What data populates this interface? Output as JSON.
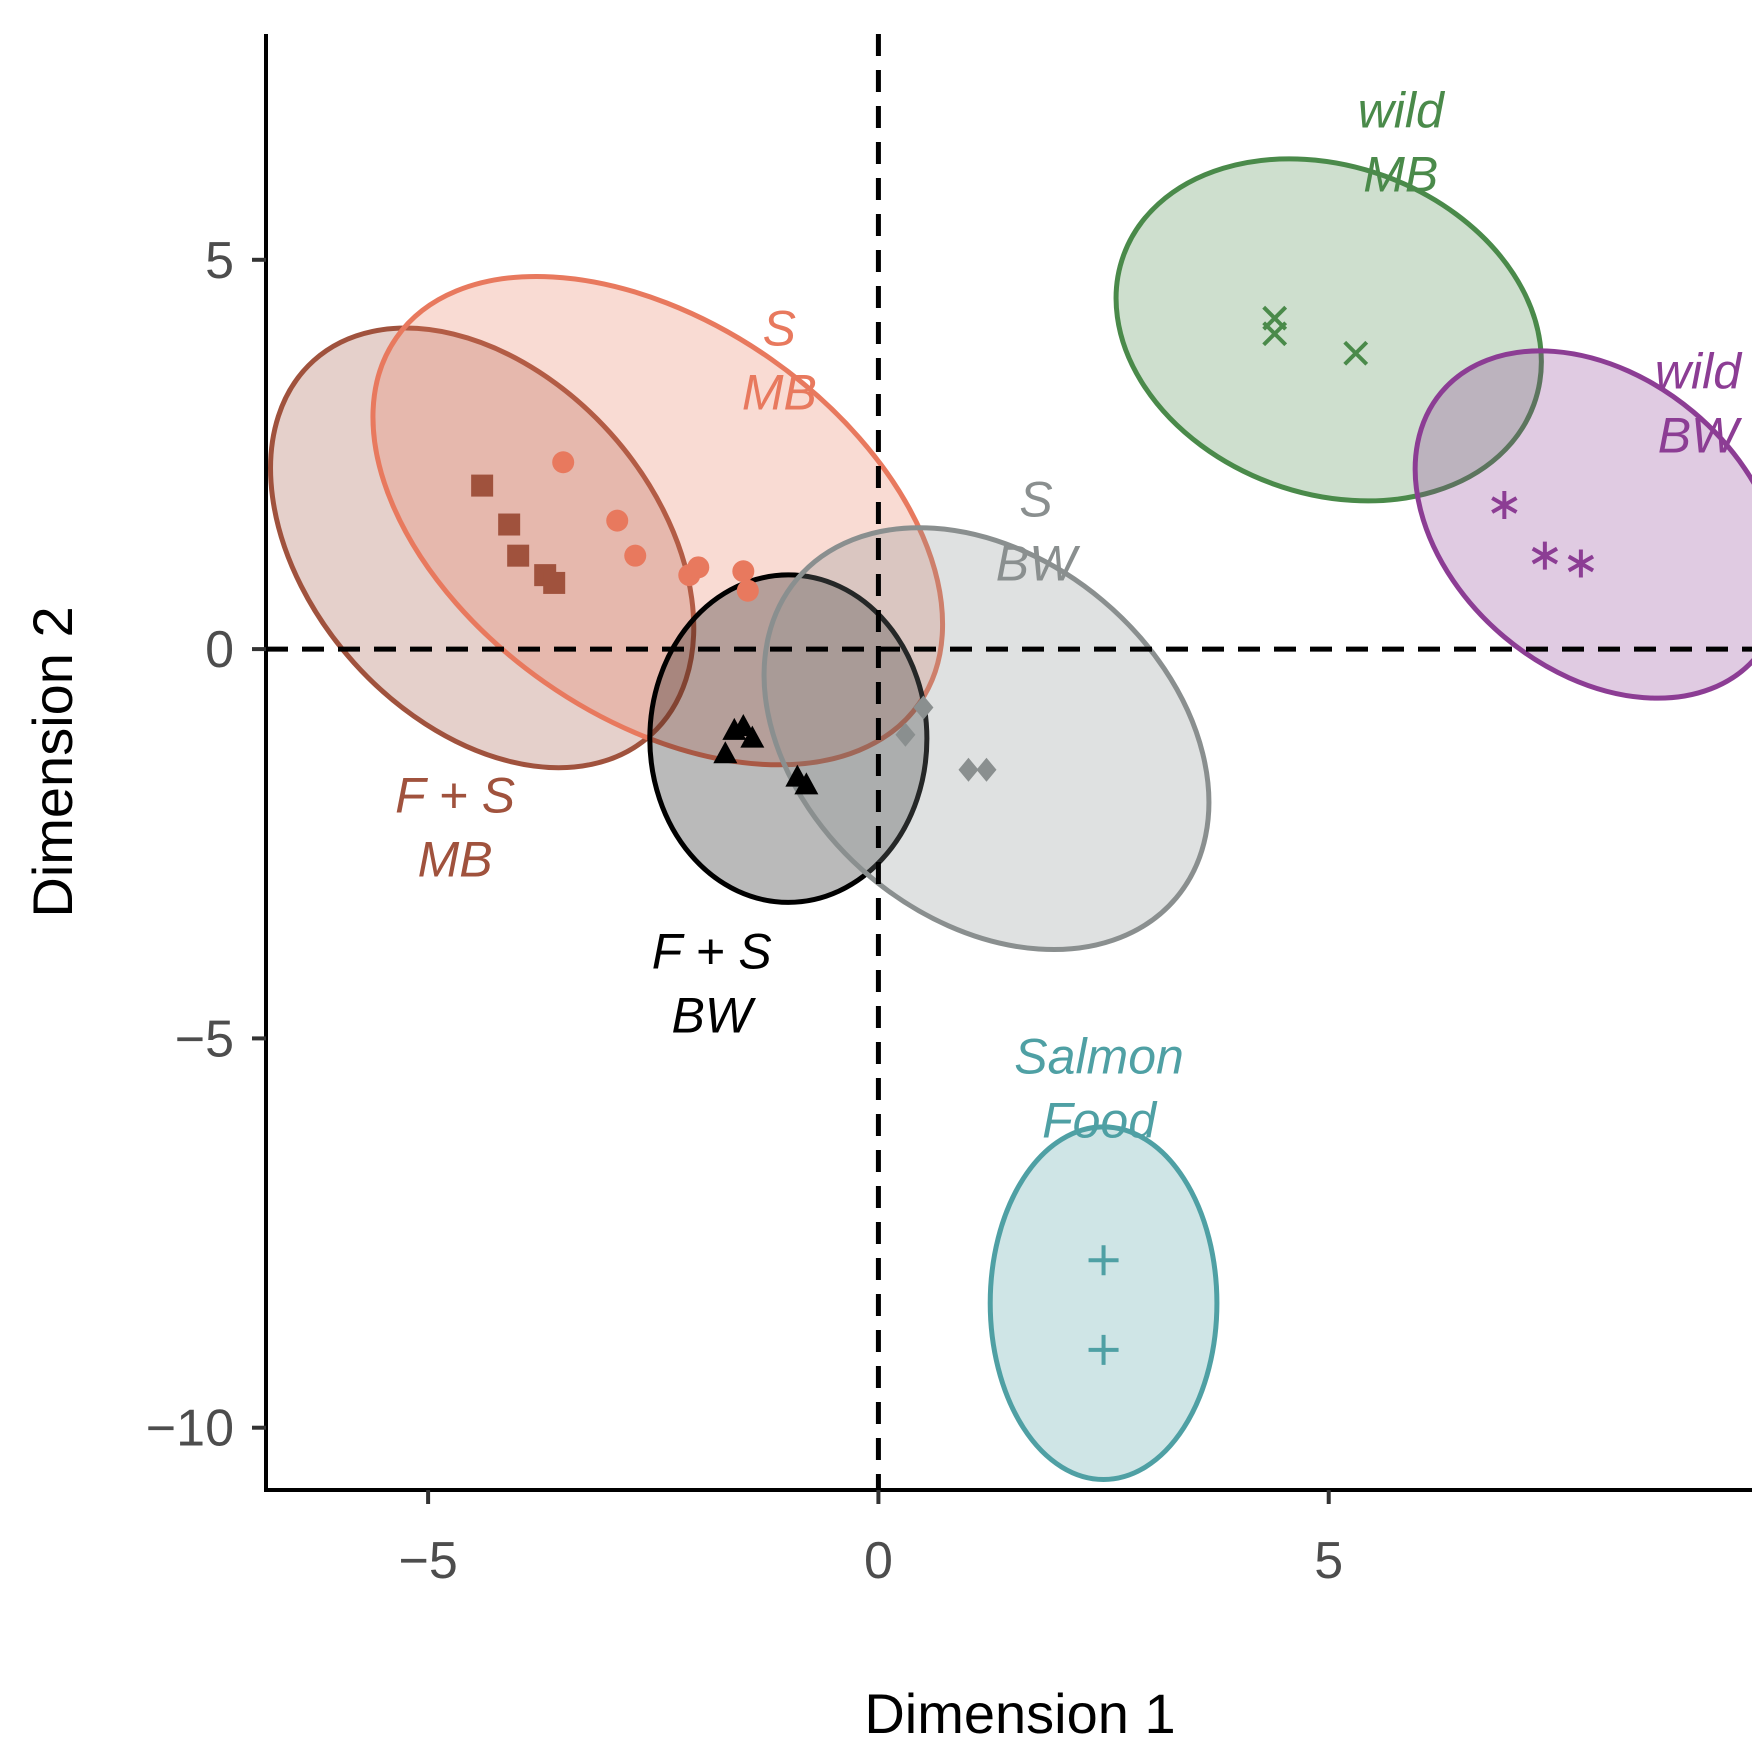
{
  "chart_data": {
    "type": "scatter",
    "xlabel": "Dimension 1",
    "ylabel": "Dimension 2",
    "xlim": [
      -6.8,
      9.7
    ],
    "ylim": [
      -10.8,
      7.9
    ],
    "xticks": [
      -5,
      0,
      5
    ],
    "yticks": [
      -10,
      -5,
      0,
      5
    ],
    "xtick_labels": [
      "−5",
      "0",
      "5"
    ],
    "ytick_labels": [
      "−10",
      "−5",
      "0",
      "5"
    ],
    "reference_lines": {
      "x": 0,
      "y": 0,
      "style": "dashed"
    },
    "grid": false,
    "legend": "none",
    "series": [
      {
        "name": "F + S MB",
        "label_lines": [
          "F + S",
          "MB"
        ],
        "label_pos": [
          -4.7,
          -2.1
        ],
        "color": "#a0523d",
        "marker": "square",
        "points": [
          [
            -4.4,
            2.1
          ],
          [
            -4.1,
            1.6
          ],
          [
            -4.0,
            1.2
          ],
          [
            -3.7,
            0.95
          ],
          [
            -3.6,
            0.85
          ]
        ],
        "ellipse": {
          "cx": -4.4,
          "cy": 1.3,
          "rx": 2.05,
          "ry": 3.0,
          "angle": 42
        }
      },
      {
        "name": "S MB",
        "label_lines": [
          "S",
          "MB"
        ],
        "label_pos": [
          -1.1,
          3.9
        ],
        "color": "#e8795e",
        "marker": "circle",
        "points": [
          [
            -3.5,
            2.4
          ],
          [
            -2.9,
            1.65
          ],
          [
            -2.7,
            1.2
          ],
          [
            -2.1,
            0.95
          ],
          [
            -2.0,
            1.05
          ],
          [
            -1.5,
            1.0
          ],
          [
            -1.45,
            0.75
          ]
        ],
        "ellipse": {
          "cx": -2.45,
          "cy": 1.65,
          "rx": 2.35,
          "ry": 3.8,
          "angle": 55
        }
      },
      {
        "name": "F + S BW",
        "label_lines": [
          "F + S",
          "BW"
        ],
        "label_pos": [
          -1.85,
          -4.1
        ],
        "color": "#000000",
        "marker": "triangle",
        "points": [
          [
            -1.6,
            -1.05
          ],
          [
            -1.5,
            -1.0
          ],
          [
            -1.7,
            -1.35
          ],
          [
            -1.4,
            -1.15
          ],
          [
            -0.9,
            -1.65
          ],
          [
            -0.8,
            -1.75
          ]
        ],
        "ellipse": {
          "cx": -1.0,
          "cy": -1.15,
          "rx": 1.65,
          "ry": 1.95,
          "angle": 0
        }
      },
      {
        "name": "S BW",
        "label_lines": [
          "S",
          "BW"
        ],
        "label_pos": [
          1.75,
          1.7
        ],
        "color": "#8a8f8f",
        "marker": "diamond",
        "points": [
          [
            0.5,
            -0.75
          ],
          [
            0.3,
            -1.1
          ],
          [
            1.0,
            -1.55
          ],
          [
            1.2,
            -1.55
          ]
        ],
        "ellipse": {
          "cx": 1.2,
          "cy": -1.15,
          "rx": 2.15,
          "ry": 2.95,
          "angle": 50
        }
      },
      {
        "name": "wild MB",
        "label_lines": [
          "wild",
          "MB"
        ],
        "label_pos": [
          5.8,
          6.7
        ],
        "color": "#4a8a4a",
        "marker": "x",
        "points": [
          [
            4.4,
            4.25
          ],
          [
            4.4,
            4.05
          ],
          [
            5.3,
            3.8
          ]
        ],
        "ellipse": {
          "cx": 5.0,
          "cy": 4.1,
          "rx": 1.95,
          "ry": 2.6,
          "angle": 70
        }
      },
      {
        "name": "wild BW",
        "label_lines": [
          "wild",
          "BW"
        ],
        "label_pos": [
          9.1,
          3.35
        ],
        "color": "#8c3d94",
        "marker": "asterisk",
        "points": [
          [
            6.95,
            1.85
          ],
          [
            7.4,
            1.2
          ],
          [
            7.8,
            1.1
          ]
        ],
        "ellipse": {
          "cx": 8.0,
          "cy": 1.6,
          "rx": 1.75,
          "ry": 2.45,
          "angle": 50
        }
      },
      {
        "name": "Salmon Food",
        "label_lines": [
          "Salmon",
          "Food"
        ],
        "label_pos": [
          2.45,
          -5.45
        ],
        "color": "#4fa0a4",
        "marker": "plus",
        "points": [
          [
            2.5,
            -7.85
          ],
          [
            2.5,
            -9.0
          ]
        ],
        "ellipse": {
          "cx": 2.5,
          "cy": -8.4,
          "rx": 1.35,
          "ry": 2.1,
          "angle": 0
        }
      }
    ]
  }
}
